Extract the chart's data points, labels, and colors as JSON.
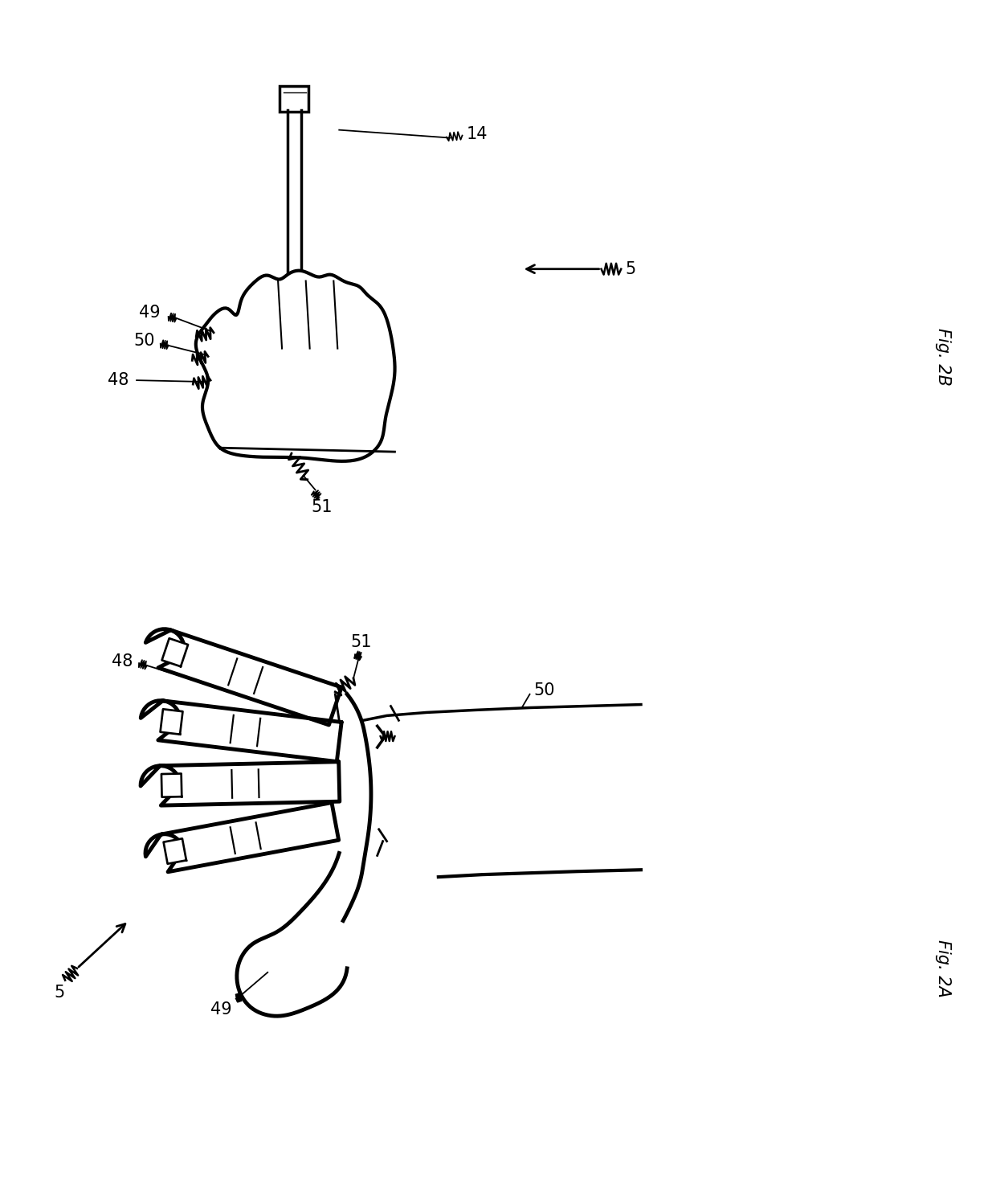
{
  "fig_width": 12.4,
  "fig_height": 14.98,
  "bg_color": "#ffffff",
  "line_color": "#000000",
  "label_fontsize": 15,
  "caption_fontsize": 15
}
